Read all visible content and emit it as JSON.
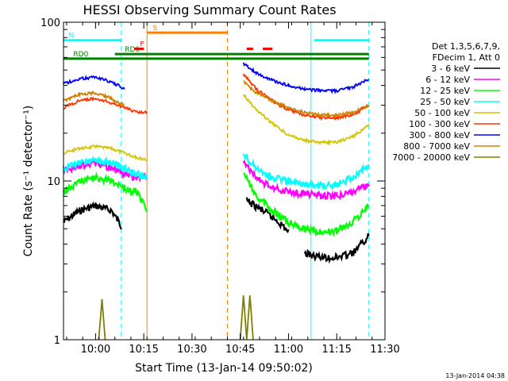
{
  "chart_data": {
    "type": "line",
    "title": "HESSI Observing Summary Count Rates",
    "xlabel": "Start Time (13-Jan-14 09:50:02)",
    "ylabel": "Count Rate (s⁻¹ detector⁻¹)",
    "ylim": [
      1,
      100
    ],
    "y_scale": "log",
    "xlim": [
      "09:50:02",
      "11:30:00"
    ],
    "x_ticks": [
      "10:00",
      "10:15",
      "10:30",
      "10:45",
      "11:00",
      "11:15",
      "11:30"
    ],
    "y_ticks": [
      "1",
      "10",
      "100"
    ],
    "legend": {
      "position": "right",
      "header_lines": [
        "Det 1,3,5,6,7,9,",
        "FDecim 1, Att 0"
      ],
      "entries": [
        {
          "label": "3 - 6 keV",
          "color": "#000000"
        },
        {
          "label": "6 - 12 keV",
          "color": "#ff00ff"
        },
        {
          "label": "12 - 25 keV",
          "color": "#00ff00"
        },
        {
          "label": "25 - 50 keV",
          "color": "#00ffff"
        },
        {
          "label": "50 - 100 keV",
          "color": "#d4c400"
        },
        {
          "label": "100 - 300 keV",
          "color": "#ff3300"
        },
        {
          "label": "300 - 800 keV",
          "color": "#0000ff"
        },
        {
          "label": "800 - 7000 keV",
          "color": "#d08000"
        },
        {
          "label": "7000 - 20000 keV",
          "color": "#808000"
        }
      ]
    },
    "series": [
      {
        "name": "3 - 6 keV",
        "color": "#000000",
        "segments": [
          {
            "x": [
              "09:50",
              "09:55",
              "10:00",
              "10:05",
              "10:08"
            ],
            "y": [
              5.5,
              6.5,
              7.0,
              6.5,
              5.2
            ]
          },
          {
            "x": [
              "10:47",
              "10:52",
              "10:57",
              "11:00"
            ],
            "y": [
              7.5,
              6.5,
              5.5,
              4.8
            ]
          },
          {
            "x": [
              "11:05",
              "11:10",
              "11:15",
              "11:20",
              "11:25"
            ],
            "y": [
              3.5,
              3.3,
              3.3,
              3.5,
              4.5
            ]
          }
        ]
      },
      {
        "name": "6 - 12 keV",
        "color": "#ff00ff",
        "segments": [
          {
            "x": [
              "09:50",
              "09:55",
              "10:00",
              "10:05",
              "10:09",
              "10:13",
              "10:16"
            ],
            "y": [
              11.5,
              12.5,
              13.0,
              12.0,
              11.0,
              10.5,
              10.5
            ]
          },
          {
            "x": [
              "10:46",
              "10:50",
              "10:55",
              "11:00",
              "11:05",
              "11:10",
              "11:15",
              "11:20",
              "11:25"
            ],
            "y": [
              13.5,
              10.5,
              9.0,
              8.5,
              8.3,
              8.0,
              8.1,
              8.5,
              9.5
            ]
          }
        ]
      },
      {
        "name": "12 - 25 keV",
        "color": "#00ff00",
        "segments": [
          {
            "x": [
              "09:50",
              "09:55",
              "10:00",
              "10:05",
              "10:09",
              "10:13",
              "10:16"
            ],
            "y": [
              8.5,
              10.0,
              10.5,
              10.0,
              9.0,
              8.5,
              6.5
            ]
          },
          {
            "x": [
              "10:46",
              "10:50",
              "10:55",
              "11:00",
              "11:05",
              "11:10",
              "11:15",
              "11:20",
              "11:25"
            ],
            "y": [
              11.5,
              8.0,
              6.5,
              5.5,
              5.0,
              4.8,
              4.8,
              5.5,
              7.0
            ]
          }
        ]
      },
      {
        "name": "25 - 50 keV",
        "color": "#00ffff",
        "segments": [
          {
            "x": [
              "09:50",
              "09:55",
              "10:00",
              "10:05",
              "10:09",
              "10:13",
              "10:16"
            ],
            "y": [
              12.0,
              13.0,
              13.5,
              13.0,
              12.0,
              11.0,
              10.5
            ]
          },
          {
            "x": [
              "10:46",
              "10:50",
              "10:55",
              "11:00",
              "11:05",
              "11:10",
              "11:15",
              "11:20",
              "11:25"
            ],
            "y": [
              15.0,
              12.0,
              10.5,
              10.0,
              9.5,
              9.3,
              9.5,
              10.5,
              12.5
            ]
          }
        ]
      },
      {
        "name": "50 - 100 keV",
        "color": "#d4c400",
        "segments": [
          {
            "x": [
              "09:50",
              "09:55",
              "10:00",
              "10:05",
              "10:09",
              "10:13",
              "10:16"
            ],
            "y": [
              15.0,
              16.0,
              16.5,
              16.0,
              15.0,
              14.0,
              13.5
            ]
          },
          {
            "x": [
              "10:46",
              "10:50",
              "10:55",
              "11:00",
              "11:05",
              "11:10",
              "11:15",
              "11:20",
              "11:25"
            ],
            "y": [
              35.0,
              28.0,
              23.0,
              19.5,
              18.0,
              17.5,
              17.5,
              19.0,
              22.5
            ]
          }
        ]
      },
      {
        "name": "100 - 300 keV",
        "color": "#ff3300",
        "segments": [
          {
            "x": [
              "09:50",
              "09:55",
              "10:00",
              "10:05",
              "10:09",
              "10:13",
              "10:16"
            ],
            "y": [
              29.0,
              32.0,
              33.0,
              31.0,
              29.0,
              27.0,
              27.0
            ]
          },
          {
            "x": [
              "10:46",
              "10:50",
              "10:55",
              "11:00",
              "11:05",
              "11:10",
              "11:15",
              "11:20",
              "11:25"
            ],
            "y": [
              47.0,
              38.0,
              32.0,
              28.0,
              26.0,
              25.0,
              25.0,
              26.0,
              30.0
            ]
          }
        ]
      },
      {
        "name": "300 - 800 keV",
        "color": "#0000ff",
        "segments": [
          {
            "x": [
              "09:50",
              "09:55",
              "10:00",
              "10:05",
              "10:09"
            ],
            "y": [
              41.0,
              44.0,
              45.0,
              42.0,
              38.0
            ]
          },
          {
            "x": [
              "10:46",
              "10:50",
              "10:55",
              "11:00",
              "11:05",
              "11:10",
              "11:15",
              "11:20",
              "11:25"
            ],
            "y": [
              55.0,
              48.0,
              43.0,
              40.0,
              38.0,
              37.0,
              37.0,
              39.0,
              44.0
            ]
          }
        ]
      },
      {
        "name": "800 - 7000 keV",
        "color": "#d08000",
        "segments": [
          {
            "x": [
              "09:50",
              "09:55",
              "10:00",
              "10:05",
              "10:09"
            ],
            "y": [
              32.0,
              35.0,
              36.0,
              33.0,
              30.0
            ]
          },
          {
            "x": [
              "10:46",
              "10:50",
              "10:55",
              "11:00",
              "11:05",
              "11:10",
              "11:15",
              "11:20",
              "11:25"
            ],
            "y": [
              42.0,
              36.0,
              32.0,
              29.0,
              27.0,
              26.0,
              26.0,
              27.0,
              30.0
            ]
          }
        ]
      },
      {
        "name": "7000 - 20000 keV",
        "color": "#808000",
        "segments": [
          {
            "x": [
              "10:01",
              "10:02",
              "10:03"
            ],
            "y": [
              1.0,
              1.8,
              1.0
            ]
          },
          {
            "x": [
              "10:45",
              "10:46",
              "10:47",
              "10:48",
              "10:49"
            ],
            "y": [
              1.0,
              1.9,
              1.0,
              1.9,
              1.0
            ]
          }
        ]
      }
    ],
    "flag_markers": [
      {
        "label": "N",
        "color": "#00ffff",
        "y": 77,
        "x": [
          [
            "09:50",
            "10:08"
          ],
          [
            "11:08",
            "11:25"
          ]
        ]
      },
      {
        "label": "S",
        "color": "#ff8000",
        "y": 86,
        "x": [
          [
            "10:16",
            "10:41"
          ]
        ]
      },
      {
        "label": "F",
        "color": "#ff0000",
        "y": 68,
        "x": [
          [
            "10:12",
            "10:15"
          ],
          [
            "10:47",
            "10:49"
          ],
          [
            "10:52",
            "10:55"
          ]
        ]
      },
      {
        "label": "RD0",
        "color": "#008000",
        "y": 59,
        "x": [
          [
            "09:50",
            "11:25"
          ]
        ]
      },
      {
        "label": "RD6",
        "color": "#008000",
        "y": 63,
        "x": [
          [
            "10:06",
            "11:25"
          ]
        ]
      }
    ],
    "vertical_lines": [
      {
        "x": "10:08",
        "style": "dashed",
        "color": "#00ffff"
      },
      {
        "x": "10:16",
        "style": "solid",
        "color": "#ff8000"
      },
      {
        "x": "10:41",
        "style": "dashed",
        "color": "#ff8000"
      },
      {
        "x": "11:07",
        "style": "solid",
        "color": "#00ffff"
      },
      {
        "x": "11:25",
        "style": "dashed",
        "color": "#00ffff"
      }
    ],
    "timestamp": "13-Jan-2014 04:38"
  }
}
